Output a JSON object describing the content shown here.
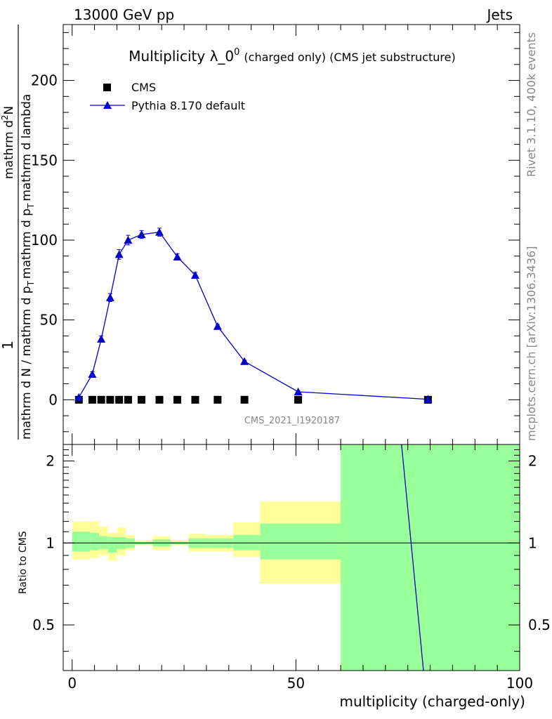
{
  "header": {
    "left": "13000 GeV pp",
    "right": "Jets"
  },
  "side_text": {
    "rivet": "Rivet 3.1.10,  400k events",
    "mcplots": "mcplots.cern.ch [arXiv:1306.3436]"
  },
  "watermark": "CMS_2021_I1920187",
  "colors": {
    "mc_line": "#0000cc",
    "data_marker": "#000000",
    "band_inner": "#99ff99",
    "band_outer": "#ffff99"
  },
  "chart_data": [
    {
      "type": "scatter",
      "title": "Multiplicity λ_0",
      "title_sup": "0",
      "title_suffix": "(charged only) (CMS jet substructure)",
      "ylabel_parts": [
        "1",
        "mathrm d N / mathrm d p",
        "T",
        "mathrm d p",
        "T",
        "mathrm d lambda",
        "mathrm d",
        "2",
        "N"
      ],
      "ylim": [
        -28,
        235
      ],
      "yticks": [
        0,
        50,
        100,
        150,
        200
      ],
      "xlim": [
        -2,
        100
      ],
      "legend_placement": "top-left",
      "series": [
        {
          "name": "CMS",
          "marker": "square",
          "x": [
            1.5,
            4.5,
            6.5,
            8.5,
            10.5,
            12.5,
            15.5,
            19.5,
            23.5,
            27.5,
            32.5,
            38.5,
            50.5,
            79.5
          ],
          "y": [
            0,
            0,
            0,
            0,
            0,
            0,
            0,
            0,
            0,
            0,
            0,
            0,
            0,
            0
          ]
        },
        {
          "name": "Pythia 8.170 default",
          "marker": "triangle",
          "x": [
            1.5,
            4.5,
            6.5,
            8.5,
            10.5,
            12.5,
            15.5,
            19.5,
            23.5,
            27.5,
            32.5,
            38.5,
            50.5,
            79.5
          ],
          "y": [
            1.5,
            16,
            38,
            64,
            91,
            100,
            103.5,
            105,
            89.5,
            78,
            46,
            24,
            5,
            0.3
          ],
          "yerr": [
            0.5,
            1.5,
            2,
            2.5,
            3,
            3,
            2.5,
            2.5,
            2,
            1.8,
            1.2,
            0.8,
            0.5,
            0.1
          ]
        }
      ]
    },
    {
      "type": "area",
      "ylabel": "Ratio to CMS",
      "xlabel": "multiplicity (charged-only)",
      "ylim": [
        0.34,
        2.3
      ],
      "yticks": [
        0.5,
        1,
        2
      ],
      "xlim": [
        -2,
        100
      ],
      "xticks": [
        0,
        50,
        100
      ],
      "bands": [
        {
          "lo": 0.0,
          "hi": 4.0,
          "outer": [
            0.87,
            1.2
          ],
          "inner": [
            0.93,
            1.1
          ]
        },
        {
          "lo": 4.0,
          "hi": 6.0,
          "outer": [
            0.88,
            1.2
          ],
          "inner": [
            0.94,
            1.09
          ]
        },
        {
          "lo": 6.0,
          "hi": 8.0,
          "outer": [
            0.9,
            1.15
          ],
          "inner": [
            0.95,
            1.06
          ]
        },
        {
          "lo": 8.0,
          "hi": 10.0,
          "outer": [
            0.86,
            1.09
          ],
          "inner": [
            0.92,
            1.05
          ]
        },
        {
          "lo": 10.0,
          "hi": 12.0,
          "outer": [
            0.9,
            1.14
          ],
          "inner": [
            0.95,
            1.05
          ]
        },
        {
          "lo": 12.0,
          "hi": 14.0,
          "outer": [
            0.94,
            1.07
          ],
          "inner": [
            0.96,
            1.04
          ]
        },
        {
          "lo": 14.0,
          "hi": 18.0,
          "outer": [
            0.98,
            1.02
          ],
          "inner": [
            0.99,
            1.01
          ]
        },
        {
          "lo": 18.0,
          "hi": 22.0,
          "outer": [
            0.94,
            1.06
          ],
          "inner": [
            0.97,
            1.03
          ]
        },
        {
          "lo": 22.0,
          "hi": 26.0,
          "outer": [
            0.98,
            1.02
          ],
          "inner": [
            0.99,
            1.01
          ]
        },
        {
          "lo": 26.0,
          "hi": 30.0,
          "outer": [
            0.93,
            1.08
          ],
          "inner": [
            0.96,
            1.04
          ]
        },
        {
          "lo": 30.0,
          "hi": 36.0,
          "outer": [
            0.93,
            1.07
          ],
          "inner": [
            0.96,
            1.04
          ]
        },
        {
          "lo": 36.0,
          "hi": 42.0,
          "outer": [
            0.89,
            1.19
          ],
          "inner": [
            0.94,
            1.07
          ]
        },
        {
          "lo": 42.0,
          "hi": 60.0,
          "outer": [
            0.71,
            1.42
          ],
          "inner": [
            0.87,
            1.18
          ]
        },
        {
          "lo": 60.0,
          "hi": 100.0,
          "outer": [
            0.3,
            2.4
          ],
          "inner": [
            0.3,
            2.4
          ]
        }
      ],
      "ratio_line": {
        "x": [
          73.6,
          78.5
        ],
        "y": [
          2.4,
          0.34
        ]
      }
    }
  ]
}
